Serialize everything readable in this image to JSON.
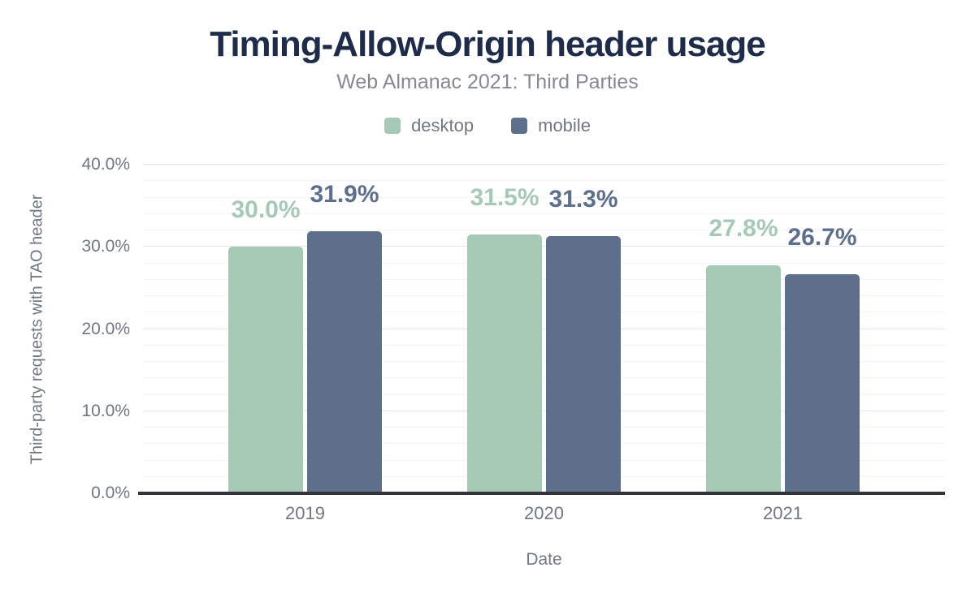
{
  "title": "Timing-Allow-Origin header usage",
  "subtitle": "Web Almanac 2021: Third Parties",
  "colors": {
    "title_text": "#1e2b49",
    "subtitle_text": "#858a92",
    "axis_text": "#6f7780",
    "desktop": "#a6c9b5",
    "mobile": "#5d6f8b",
    "grid_major": "#e5e7e9",
    "grid_minor": "#f3f4f6",
    "baseline": "#313539"
  },
  "chart_data": {
    "type": "bar",
    "categories": [
      "2019",
      "2020",
      "2021"
    ],
    "series": [
      {
        "name": "desktop",
        "color": "#a6c9b5",
        "values": [
          30.0,
          31.5,
          27.8
        ],
        "labels": [
          "30.0%",
          "31.5%",
          "27.8%"
        ]
      },
      {
        "name": "mobile",
        "color": "#5d6f8b",
        "values": [
          31.9,
          31.3,
          26.7
        ],
        "labels": [
          "31.9%",
          "31.3%",
          "26.7%"
        ]
      }
    ],
    "xlabel": "Date",
    "ylabel": "Third-party requests with TAO header",
    "ylim": [
      0,
      40
    ],
    "yticks": [
      {
        "value": 0,
        "label": "0.0%"
      },
      {
        "value": 10,
        "label": "10.0%"
      },
      {
        "value": 20,
        "label": "20.0%"
      },
      {
        "value": 30,
        "label": "30.0%"
      },
      {
        "value": 40,
        "label": "40.0%"
      }
    ],
    "grid": {
      "major_step": 10,
      "minor_step": 2
    },
    "legend_position": "top",
    "data_labels": true
  }
}
